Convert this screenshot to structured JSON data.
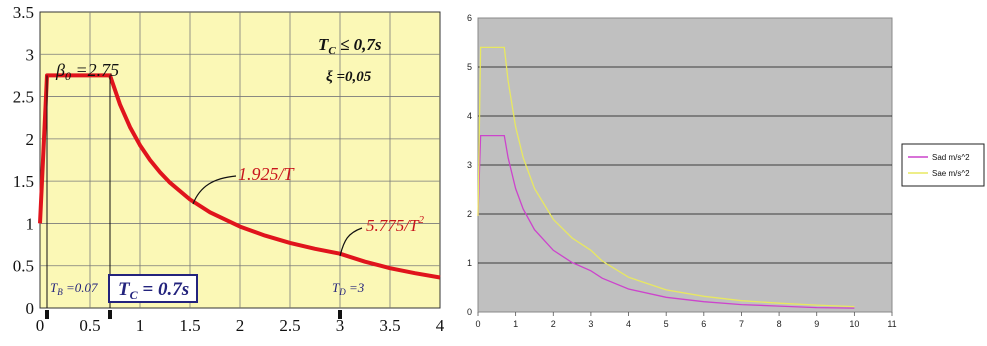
{
  "chart_data": [
    {
      "type": "line",
      "xlim": [
        0,
        4
      ],
      "ylim": [
        0,
        3.5
      ],
      "x_ticks": [
        "0",
        "0.5",
        "1",
        "1.5",
        "2",
        "2.5",
        "3",
        "3.5",
        "4"
      ],
      "y_ticks": [
        "0",
        "0.5",
        "1",
        "1.5",
        "2",
        "2.5",
        "3",
        "3.5"
      ],
      "grid": true,
      "background": "#fbf8b6",
      "series_color": "#e0141c",
      "series": [
        {
          "x": [
            0,
            0.07,
            0.7,
            0.8,
            0.9,
            1.0,
            1.1,
            1.2,
            1.3,
            1.5,
            1.7,
            2.0,
            2.25,
            2.5,
            2.75,
            3.0,
            3.25,
            3.5,
            3.75,
            4.0
          ],
          "values": [
            1.0,
            2.75,
            2.75,
            2.406,
            2.139,
            1.925,
            1.75,
            1.604,
            1.481,
            1.283,
            1.132,
            0.963,
            0.856,
            0.77,
            0.7,
            0.642,
            0.547,
            0.471,
            0.411,
            0.361
          ]
        }
      ],
      "annotations": {
        "tc_cond_base": "T",
        "tc_cond_sub": "C",
        "tc_cond_rest": " ≤ 0,7s",
        "xi_label": "ξ =0,05",
        "beta_base": "β",
        "beta_sub": "0",
        "beta_rest": " =2.75",
        "eq_mid": "1.925/T",
        "eq_late_base": "5.775/T",
        "eq_late_sup": "2",
        "tb_base": "T",
        "tb_sub": "B",
        "tb_rest": " =0.07",
        "tc_box_base": "T",
        "tc_box_sub": "C",
        "tc_box_rest": " = 0.7s",
        "td_base": "T",
        "td_sub": "D",
        "td_rest": " =3"
      }
    },
    {
      "type": "line",
      "xlim": [
        0,
        11
      ],
      "ylim": [
        0,
        6
      ],
      "x_ticks": [
        "0",
        "1",
        "2",
        "3",
        "4",
        "5",
        "6",
        "7",
        "8",
        "9",
        "10",
        "11"
      ],
      "y_ticks": [
        "0",
        "1",
        "2",
        "3",
        "4",
        "5",
        "6"
      ],
      "grid": true,
      "background": "#c0c0c0",
      "legend_position": "right",
      "series": [
        {
          "name": "Sad m/s^2",
          "color": "#cc44cc",
          "x": [
            0,
            0.07,
            0.7,
            0.8,
            1.0,
            1.2,
            1.5,
            2.0,
            2.5,
            3.0,
            3.3,
            4.0,
            5.0,
            6.0,
            7.0,
            8.0,
            9.0,
            10.0
          ],
          "values": [
            1.96,
            3.6,
            3.6,
            3.15,
            2.52,
            2.1,
            1.68,
            1.26,
            1.01,
            0.84,
            0.69,
            0.47,
            0.3,
            0.21,
            0.15,
            0.12,
            0.09,
            0.08
          ]
        },
        {
          "name": "Sae m/s^2",
          "color": "#e8e860",
          "x": [
            0,
            0.07,
            0.7,
            0.8,
            1.0,
            1.2,
            1.5,
            2.0,
            2.5,
            3.0,
            3.3,
            4.0,
            5.0,
            6.0,
            7.0,
            8.0,
            9.0,
            10.0
          ],
          "values": [
            1.96,
            5.4,
            5.4,
            4.72,
            3.78,
            3.15,
            2.52,
            1.89,
            1.51,
            1.26,
            1.04,
            0.71,
            0.45,
            0.32,
            0.23,
            0.18,
            0.14,
            0.11
          ]
        }
      ]
    }
  ]
}
